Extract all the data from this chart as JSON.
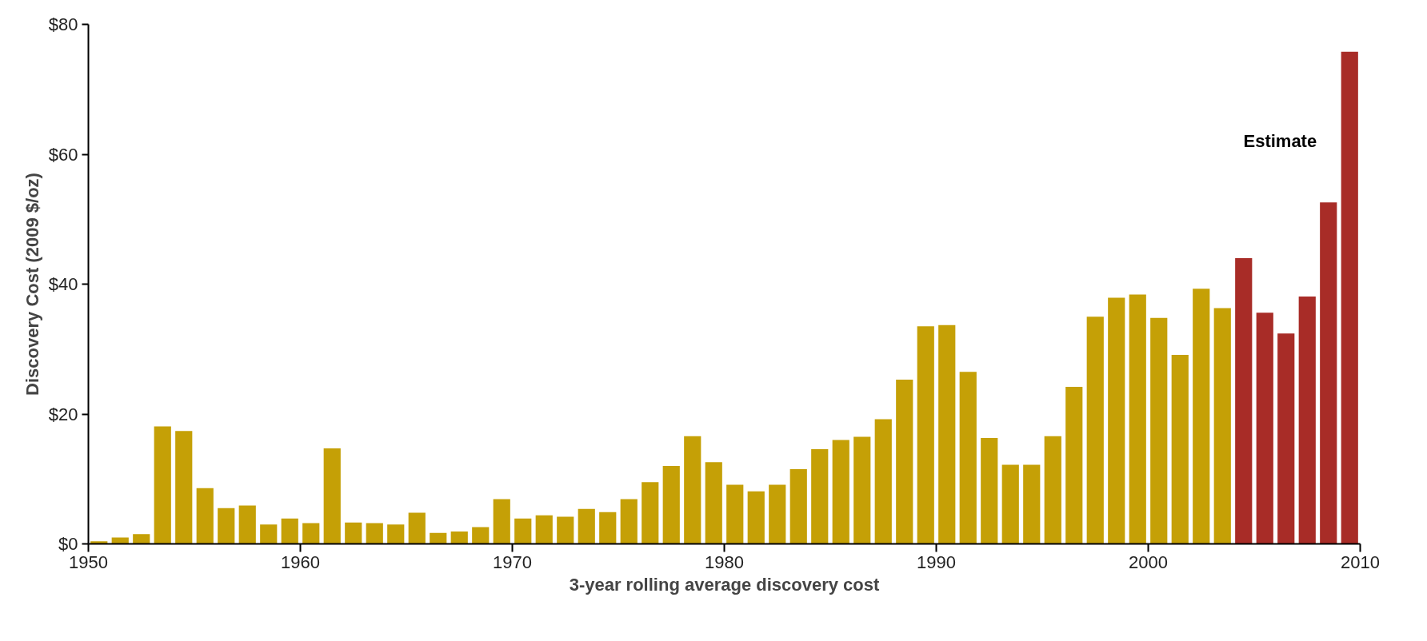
{
  "chart_data": {
    "type": "bar",
    "xlabel": "3-year rolling average discovery cost",
    "ylabel": "Discovery Cost (2009 $/oz)",
    "x": [
      1950.5,
      1951.5,
      1952.5,
      1953.5,
      1954.5,
      1955.5,
      1956.5,
      1957.5,
      1958.5,
      1959.5,
      1960.5,
      1961.5,
      1962.5,
      1963.5,
      1964.5,
      1965.5,
      1966.5,
      1967.5,
      1968.5,
      1969.5,
      1970.5,
      1971.5,
      1972.5,
      1973.5,
      1974.5,
      1975.5,
      1976.5,
      1977.5,
      1978.5,
      1979.5,
      1980.5,
      1981.5,
      1982.5,
      1983.5,
      1984.5,
      1985.5,
      1986.5,
      1987.5,
      1988.5,
      1989.5,
      1990.5,
      1991.5,
      1992.5,
      1993.5,
      1994.5,
      1995.5,
      1996.5,
      1997.5,
      1998.5,
      1999.5,
      2000.5,
      2001.5,
      2002.5,
      2003.5,
      2004.5,
      2005.5,
      2006.5,
      2007.5,
      2008.5,
      2009.5
    ],
    "values": [
      0.4,
      1.0,
      1.5,
      18.1,
      17.4,
      8.6,
      5.5,
      5.9,
      3.0,
      3.9,
      3.2,
      14.7,
      3.3,
      3.2,
      3.0,
      4.8,
      1.7,
      1.9,
      2.6,
      6.9,
      3.9,
      4.4,
      4.2,
      5.4,
      4.9,
      6.9,
      9.5,
      12.0,
      16.6,
      12.6,
      9.1,
      8.1,
      9.1,
      11.5,
      14.6,
      16.0,
      16.5,
      19.2,
      25.3,
      33.5,
      33.7,
      26.5,
      16.3,
      12.2,
      12.2,
      16.6,
      24.2,
      35.0,
      37.9,
      38.4,
      34.8,
      29.1,
      39.3,
      36.3,
      44.0,
      35.6,
      32.4,
      38.1,
      52.6,
      75.8
    ],
    "colors": [
      "#c5a006",
      "#c5a006",
      "#c5a006",
      "#c5a006",
      "#c5a006",
      "#c5a006",
      "#c5a006",
      "#c5a006",
      "#c5a006",
      "#c5a006",
      "#c5a006",
      "#c5a006",
      "#c5a006",
      "#c5a006",
      "#c5a006",
      "#c5a006",
      "#c5a006",
      "#c5a006",
      "#c5a006",
      "#c5a006",
      "#c5a006",
      "#c5a006",
      "#c5a006",
      "#c5a006",
      "#c5a006",
      "#c5a006",
      "#c5a006",
      "#c5a006",
      "#c5a006",
      "#c5a006",
      "#c5a006",
      "#c5a006",
      "#c5a006",
      "#c5a006",
      "#c5a006",
      "#c5a006",
      "#c5a006",
      "#c5a006",
      "#c5a006",
      "#c5a006",
      "#c5a006",
      "#c5a006",
      "#c5a006",
      "#c5a006",
      "#c5a006",
      "#c5a006",
      "#c5a006",
      "#c5a006",
      "#c5a006",
      "#c5a006",
      "#c5a006",
      "#c5a006",
      "#c5a006",
      "#c5a006",
      "#a82c27",
      "#a82c27",
      "#a82c27",
      "#a82c27",
      "#a82c27",
      "#a82c27"
    ],
    "xlim": [
      1950,
      2010
    ],
    "xticks": [
      1950,
      1960,
      1970,
      1980,
      1990,
      2000,
      2010
    ],
    "ylim": [
      0,
      80
    ],
    "yticks": [
      {
        "value": 0,
        "label": "$0"
      },
      {
        "value": 20,
        "label": "$20"
      },
      {
        "value": 40,
        "label": "$40"
      },
      {
        "value": 60,
        "label": "$60"
      },
      {
        "value": 80,
        "label": "$80"
      }
    ],
    "annotations": [
      "Estimate"
    ],
    "grid": false
  }
}
